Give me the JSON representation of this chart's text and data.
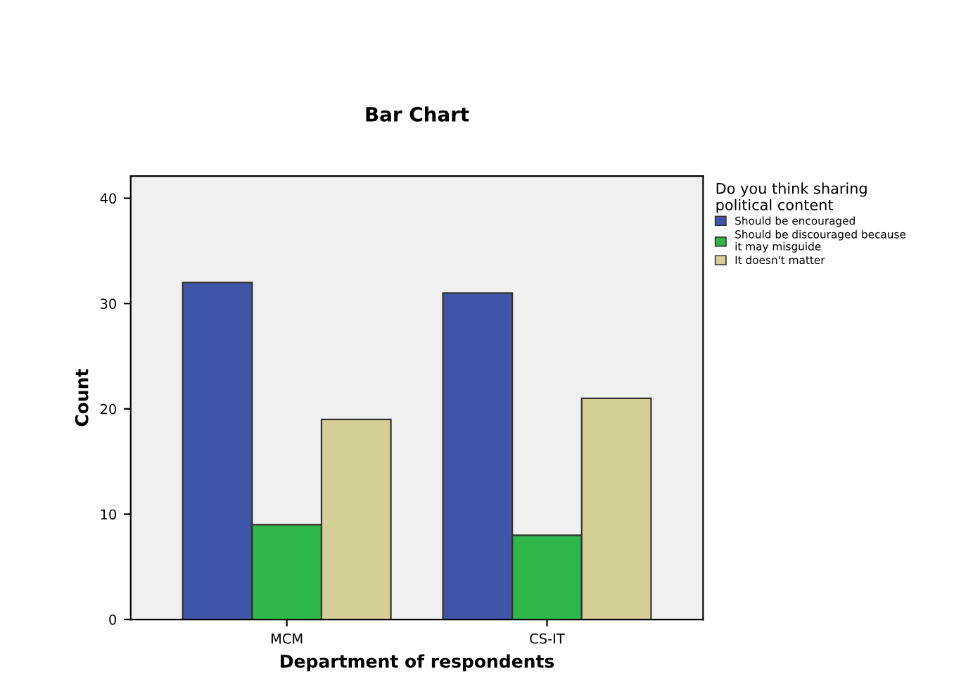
{
  "chart_data": {
    "type": "bar",
    "title": "Bar Chart",
    "xlabel": "Department of respondents",
    "ylabel": "Count",
    "legend_title": "Do you think sharing political content",
    "categories": [
      "MCM",
      "CS-IT"
    ],
    "series": [
      {
        "name": "Should be encouraged",
        "color": "#3f56a8",
        "values": [
          32,
          31
        ]
      },
      {
        "name": "Should be discouraged because it may misguide",
        "color": "#2fb84a",
        "values": [
          9,
          8
        ]
      },
      {
        "name": "It doesn't matter",
        "color": "#d4cf96",
        "values": [
          19,
          21
        ]
      }
    ],
    "ylim": [
      0,
      42.1
    ],
    "yticks": [
      0,
      10,
      20,
      30,
      40
    ],
    "grid": false,
    "legend": "right"
  }
}
